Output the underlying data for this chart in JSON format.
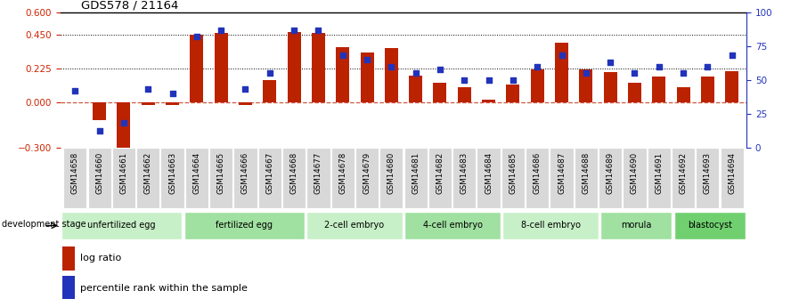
{
  "title": "GDS578 / 21164",
  "samples": [
    "GSM14658",
    "GSM14660",
    "GSM14661",
    "GSM14662",
    "GSM14663",
    "GSM14664",
    "GSM14665",
    "GSM14666",
    "GSM14667",
    "GSM14668",
    "GSM14677",
    "GSM14678",
    "GSM14679",
    "GSM14680",
    "GSM14681",
    "GSM14682",
    "GSM14683",
    "GSM14684",
    "GSM14685",
    "GSM14686",
    "GSM14687",
    "GSM14688",
    "GSM14689",
    "GSM14690",
    "GSM14691",
    "GSM14692",
    "GSM14693",
    "GSM14694"
  ],
  "log_ratio": [
    0.0,
    -0.12,
    -0.32,
    -0.02,
    -0.02,
    0.45,
    0.46,
    -0.02,
    0.15,
    0.47,
    0.46,
    0.37,
    0.33,
    0.36,
    0.18,
    0.13,
    0.1,
    0.02,
    0.12,
    0.22,
    0.4,
    0.22,
    0.2,
    0.13,
    0.17,
    0.1,
    0.17,
    0.21
  ],
  "percentile": [
    42,
    12,
    18,
    43,
    40,
    82,
    87,
    43,
    55,
    87,
    87,
    68,
    65,
    60,
    55,
    58,
    50,
    50,
    50,
    60,
    68,
    55,
    63,
    55,
    60,
    55,
    60,
    68
  ],
  "stage_groups": [
    {
      "label": "unfertilized egg",
      "start": 0,
      "end": 5,
      "color": "#c8f0c8"
    },
    {
      "label": "fertilized egg",
      "start": 5,
      "end": 10,
      "color": "#a0e0a0"
    },
    {
      "label": "2-cell embryo",
      "start": 10,
      "end": 14,
      "color": "#c8f0c8"
    },
    {
      "label": "4-cell embryo",
      "start": 14,
      "end": 18,
      "color": "#a0e0a0"
    },
    {
      "label": "8-cell embryo",
      "start": 18,
      "end": 22,
      "color": "#c8f0c8"
    },
    {
      "label": "morula",
      "start": 22,
      "end": 25,
      "color": "#a0e0a0"
    },
    {
      "label": "blastocyst",
      "start": 25,
      "end": 28,
      "color": "#70d070"
    }
  ],
  "left_ylim": [
    -0.3,
    0.6
  ],
  "right_ylim": [
    0,
    100
  ],
  "left_yticks": [
    -0.3,
    0.0,
    0.225,
    0.45,
    0.6
  ],
  "right_yticks": [
    0,
    25,
    50,
    75,
    100
  ],
  "bar_color": "#bb2200",
  "dot_color": "#2233bb",
  "dotted_lines": [
    0.225,
    0.45
  ],
  "tick_bg_color": "#d8d8d8",
  "stage_label": "development stage"
}
